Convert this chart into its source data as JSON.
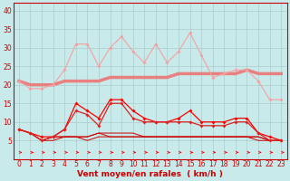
{
  "x": [
    0,
    1,
    2,
    3,
    4,
    5,
    6,
    7,
    8,
    9,
    10,
    11,
    12,
    13,
    14,
    15,
    16,
    17,
    18,
    19,
    20,
    21,
    22,
    23
  ],
  "series_rafales_max": [
    21,
    19,
    19,
    20,
    24,
    31,
    31,
    25,
    30,
    33,
    29,
    26,
    31,
    26,
    29,
    34,
    28,
    22,
    23,
    24,
    24,
    21,
    16,
    16
  ],
  "series_rafales_moy": [
    21,
    20,
    20,
    20,
    21,
    21,
    21,
    21,
    22,
    22,
    22,
    22,
    22,
    22,
    23,
    23,
    23,
    23,
    23,
    23,
    24,
    23,
    23,
    23
  ],
  "series_vent_max": [
    8,
    7,
    6,
    6,
    8,
    15,
    13,
    11,
    16,
    16,
    13,
    11,
    10,
    10,
    11,
    13,
    10,
    10,
    10,
    11,
    11,
    7,
    6,
    5
  ],
  "series_vent_moy": [
    8,
    7,
    5,
    6,
    8,
    13,
    12,
    9,
    15,
    15,
    11,
    10,
    10,
    10,
    10,
    10,
    9,
    9,
    9,
    10,
    10,
    7,
    5,
    5
  ],
  "series_flat1": [
    8,
    7,
    5,
    6,
    6,
    6,
    6,
    7,
    7,
    7,
    7,
    6,
    6,
    6,
    6,
    6,
    6,
    6,
    6,
    6,
    6,
    6,
    5,
    5
  ],
  "series_flat2": [
    8,
    7,
    5,
    6,
    6,
    6,
    6,
    7,
    6,
    6,
    6,
    6,
    6,
    6,
    6,
    6,
    6,
    6,
    6,
    6,
    6,
    6,
    5,
    5
  ],
  "series_flat3": [
    8,
    7,
    5,
    5,
    6,
    6,
    5,
    6,
    6,
    6,
    6,
    6,
    6,
    6,
    6,
    6,
    6,
    6,
    6,
    6,
    6,
    5,
    5,
    5
  ],
  "color_light_salmon": "#f5a0a0",
  "color_salmon": "#e88080",
  "color_bright_red": "#ff0000",
  "color_red": "#dd2222",
  "color_dark_red": "#cc0000",
  "background": "#c8eaea",
  "grid_color": "#aacccc",
  "xlabel": "Vent moyen/en rafales  ( km/h )",
  "xlim": [
    -0.5,
    23.5
  ],
  "ylim": [
    0,
    42
  ],
  "yticks": [
    5,
    10,
    15,
    20,
    25,
    30,
    35,
    40
  ],
  "xticks": [
    0,
    1,
    2,
    3,
    4,
    5,
    6,
    7,
    8,
    9,
    10,
    11,
    12,
    13,
    14,
    15,
    16,
    17,
    18,
    19,
    20,
    21,
    22,
    23
  ]
}
